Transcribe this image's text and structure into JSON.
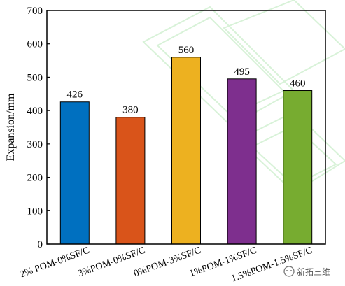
{
  "chart_data": {
    "type": "bar",
    "categories": [
      "2% POM-0%SF/C",
      "3%POM-0%SF/C",
      "0%POM-3%SF/C",
      "1%POM-1%SF/C",
      "1.5%POM-1.5%SF/C"
    ],
    "values": [
      426,
      380,
      560,
      495,
      460
    ],
    "data_labels": [
      "426",
      "380",
      "560",
      "495",
      "460"
    ],
    "colors": [
      "#0070c0",
      "#d9541a",
      "#edb120",
      "#7e2f8e",
      "#77ac30"
    ],
    "ylabel": "Expansion/mm",
    "xlabel": "",
    "ylim": [
      0,
      700
    ],
    "yticks": [
      0,
      100,
      200,
      300,
      400,
      500,
      600,
      700
    ],
    "grid": false,
    "legend": "none"
  },
  "watermark": {
    "icon": "wechat-icon",
    "text": "新拓三维"
  }
}
